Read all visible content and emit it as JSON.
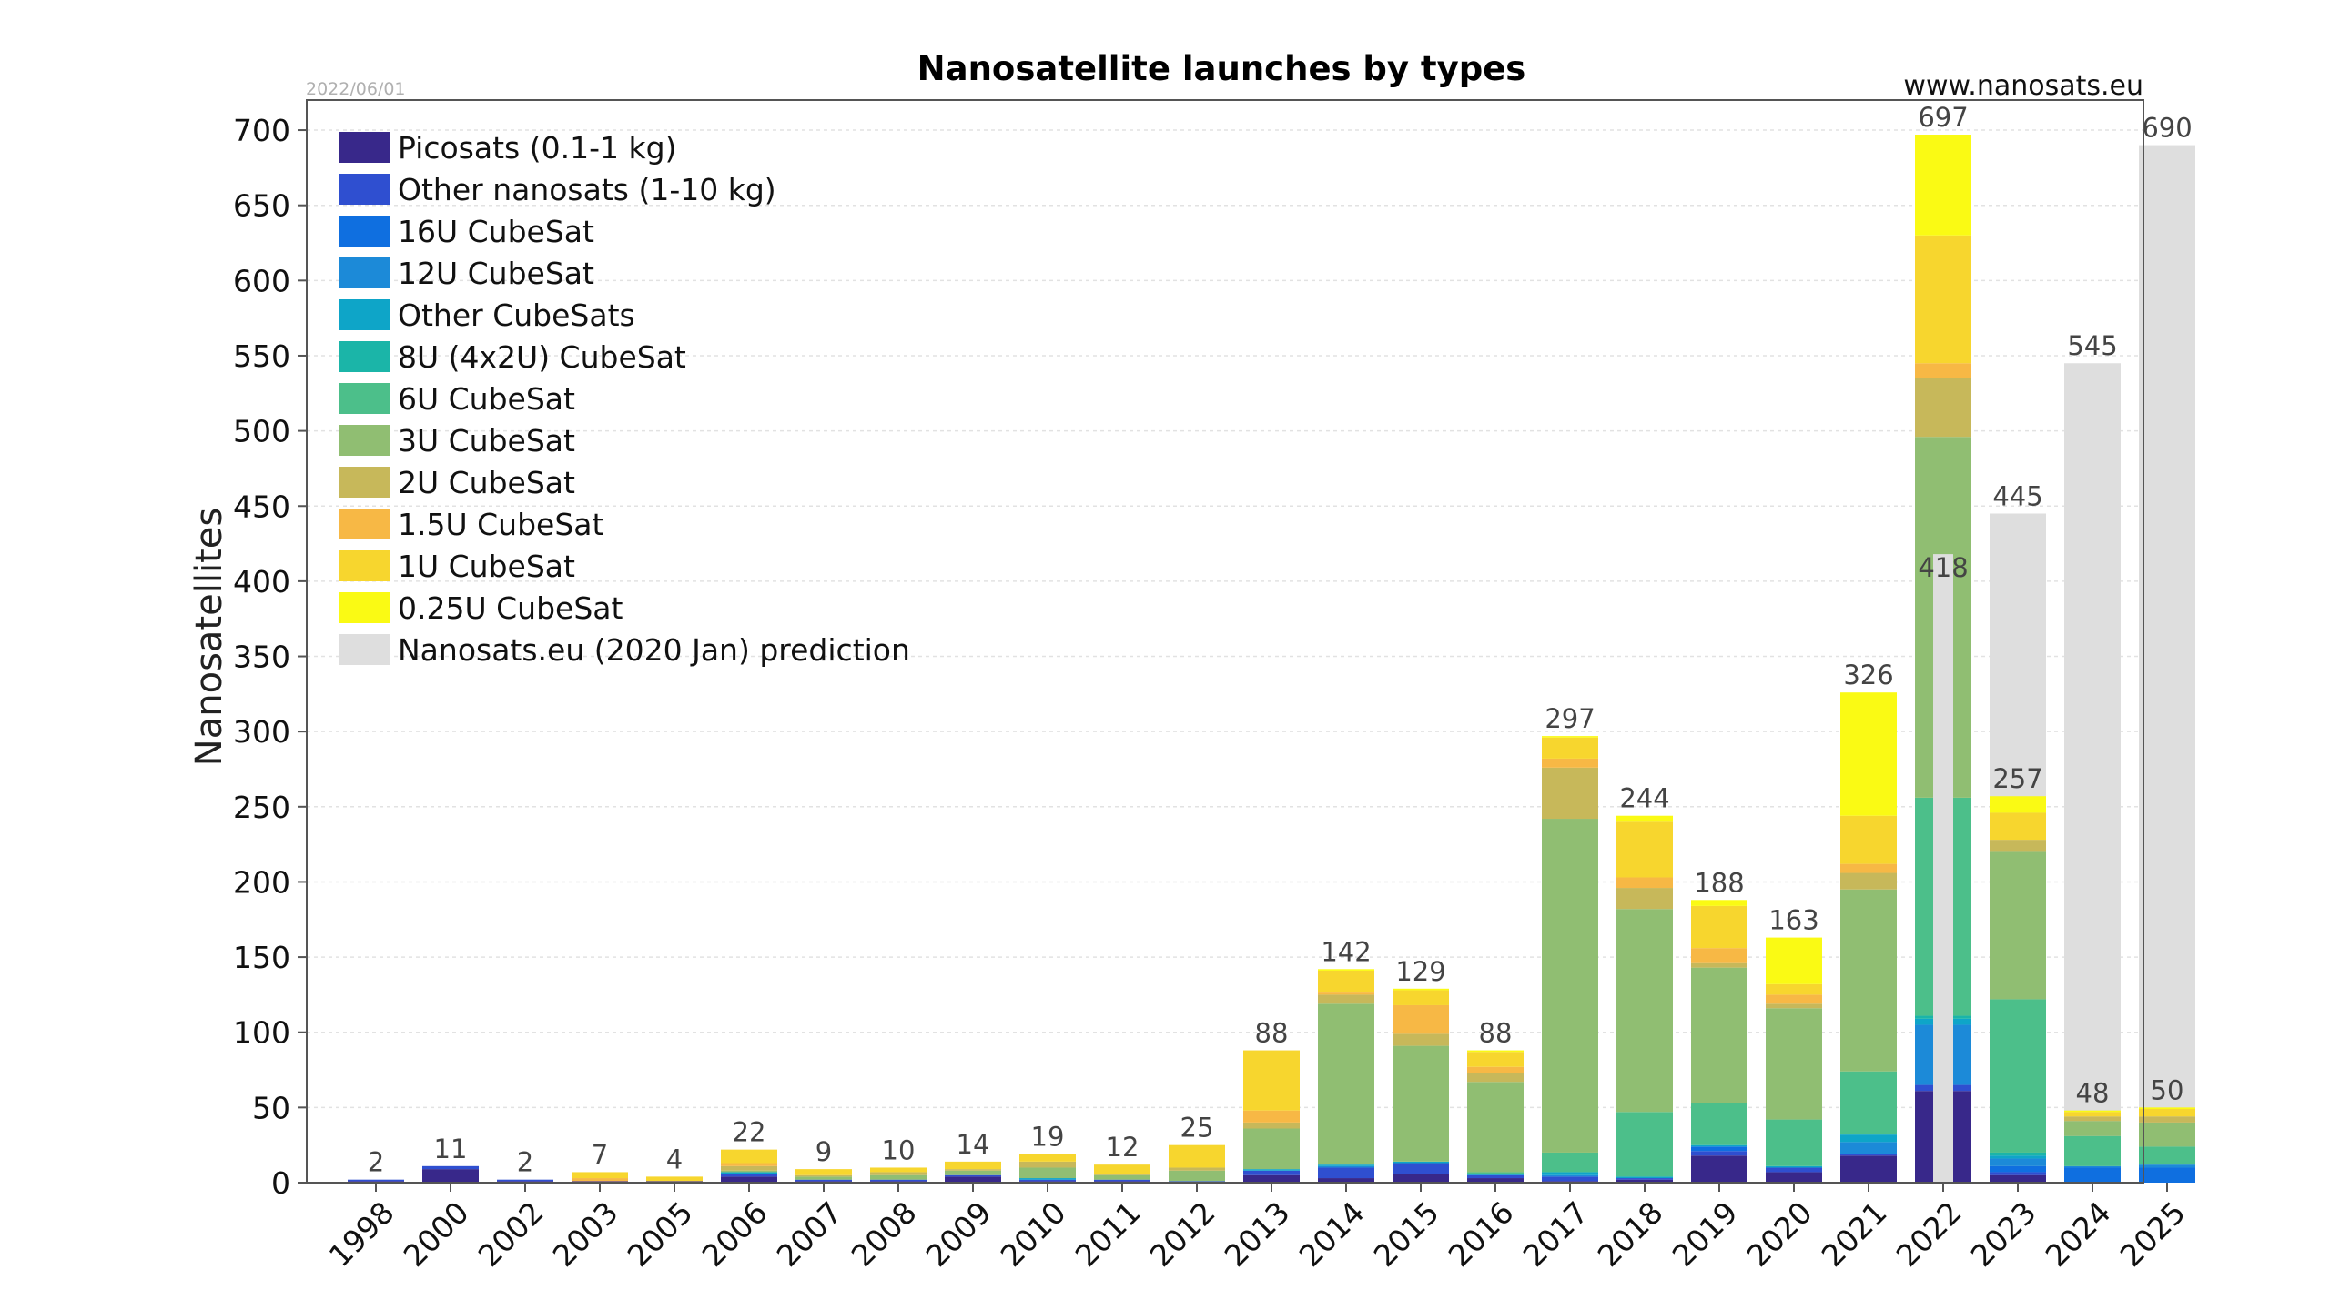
{
  "chart_data": {
    "type": "bar",
    "title": "Nanosatellite launches by types",
    "date": "2022/06/01",
    "website": "www.nanosats.eu",
    "ylabel": "Nanosatellites",
    "ylim": [
      0,
      720
    ],
    "yticks": [
      0,
      50,
      100,
      150,
      200,
      250,
      300,
      350,
      400,
      450,
      500,
      550,
      600,
      650,
      700
    ],
    "grid": "horizontal",
    "legend_position": "top-left",
    "categories": [
      "1998",
      "2000",
      "2002",
      "2003",
      "2005",
      "2006",
      "2007",
      "2008",
      "2009",
      "2010",
      "2011",
      "2012",
      "2013",
      "2014",
      "2015",
      "2016",
      "2017",
      "2018",
      "2019",
      "2020",
      "2021",
      "2022",
      "2023",
      "2024",
      "2025"
    ],
    "totals": [
      2,
      11,
      2,
      7,
      4,
      22,
      9,
      10,
      14,
      19,
      12,
      25,
      88,
      142,
      129,
      88,
      297,
      244,
      188,
      163,
      326,
      697,
      257,
      48,
      50
    ],
    "series": [
      {
        "name": "Picosats (0.1-1 kg)",
        "color": "#38288a",
        "values": [
          1,
          9,
          1,
          1,
          1,
          4,
          1,
          1,
          4,
          1,
          1,
          0,
          5,
          3,
          6,
          3,
          1,
          2,
          18,
          7,
          18,
          61,
          5,
          0,
          0
        ]
      },
      {
        "name": "Other nanosats (1-10 kg)",
        "color": "#2f4fd0",
        "values": [
          1,
          2,
          1,
          0,
          0,
          2,
          1,
          1,
          1,
          1,
          1,
          1,
          3,
          7,
          7,
          2,
          3,
          1,
          3,
          3,
          1,
          4,
          2,
          0,
          0
        ]
      },
      {
        "name": "16U CubeSat",
        "color": "#0f6fe0",
        "values": [
          0,
          0,
          0,
          0,
          0,
          0,
          0,
          0,
          0,
          0,
          0,
          0,
          0,
          0,
          0,
          0,
          0,
          0,
          3,
          0,
          0,
          0,
          4,
          10,
          10
        ]
      },
      {
        "name": "12U CubeSat",
        "color": "#1c8ad8",
        "values": [
          0,
          0,
          0,
          0,
          0,
          0,
          0,
          0,
          0,
          0,
          0,
          0,
          0,
          1,
          0,
          0,
          1,
          0,
          0,
          0,
          8,
          40,
          5,
          1,
          2
        ]
      },
      {
        "name": "Other CubeSats",
        "color": "#0ea5c8",
        "values": [
          0,
          0,
          0,
          0,
          0,
          1,
          0,
          0,
          0,
          1,
          0,
          0,
          1,
          1,
          1,
          1,
          2,
          1,
          1,
          1,
          5,
          4,
          2,
          0,
          0
        ]
      },
      {
        "name": "8U (4x2U) CubeSat",
        "color": "#1bb5a8",
        "values": [
          0,
          0,
          0,
          0,
          0,
          0,
          0,
          0,
          0,
          0,
          0,
          0,
          0,
          0,
          0,
          0,
          0,
          0,
          0,
          0,
          0,
          2,
          2,
          0,
          0
        ]
      },
      {
        "name": "6U CubeSat",
        "color": "#4cbf8a",
        "values": [
          0,
          0,
          0,
          0,
          0,
          0,
          0,
          0,
          0,
          0,
          0,
          0,
          0,
          0,
          0,
          1,
          13,
          43,
          28,
          31,
          42,
          145,
          102,
          20,
          12
        ]
      },
      {
        "name": "3U CubeSat",
        "color": "#90be72",
        "values": [
          0,
          0,
          0,
          0,
          0,
          1,
          2,
          3,
          3,
          7,
          3,
          7,
          27,
          107,
          77,
          60,
          222,
          135,
          90,
          74,
          121,
          240,
          98,
          10,
          16
        ]
      },
      {
        "name": "2U CubeSat",
        "color": "#c7b85a",
        "values": [
          0,
          0,
          0,
          0,
          0,
          3,
          1,
          2,
          1,
          4,
          1,
          2,
          4,
          6,
          8,
          6,
          34,
          14,
          3,
          3,
          11,
          39,
          8,
          3,
          4
        ]
      },
      {
        "name": "1.5U CubeSat",
        "color": "#f7b845",
        "values": [
          0,
          0,
          0,
          2,
          0,
          2,
          0,
          0,
          0,
          0,
          0,
          0,
          8,
          2,
          19,
          4,
          6,
          7,
          10,
          6,
          6,
          10,
          0,
          0,
          0
        ]
      },
      {
        "name": "1U CubeSat",
        "color": "#f7d62e",
        "values": [
          0,
          0,
          0,
          4,
          3,
          9,
          4,
          3,
          5,
          5,
          6,
          15,
          40,
          14,
          10,
          10,
          14,
          37,
          28,
          7,
          32,
          85,
          18,
          3,
          5
        ]
      },
      {
        "name": "0.25U CubeSat",
        "color": "#fafa14",
        "values": [
          0,
          0,
          0,
          0,
          0,
          0,
          0,
          0,
          0,
          0,
          0,
          0,
          0,
          1,
          1,
          1,
          1,
          4,
          4,
          31,
          82,
          67,
          11,
          1,
          1
        ]
      }
    ],
    "prediction": {
      "name": "Nanosats.eu (2020 Jan) prediction",
      "color": "#dedede",
      "points": [
        {
          "category": "2022",
          "value": 418
        },
        {
          "category": "2023",
          "value": 445
        },
        {
          "category": "2024",
          "value": 545
        },
        {
          "category": "2025",
          "value": 690
        }
      ]
    }
  }
}
